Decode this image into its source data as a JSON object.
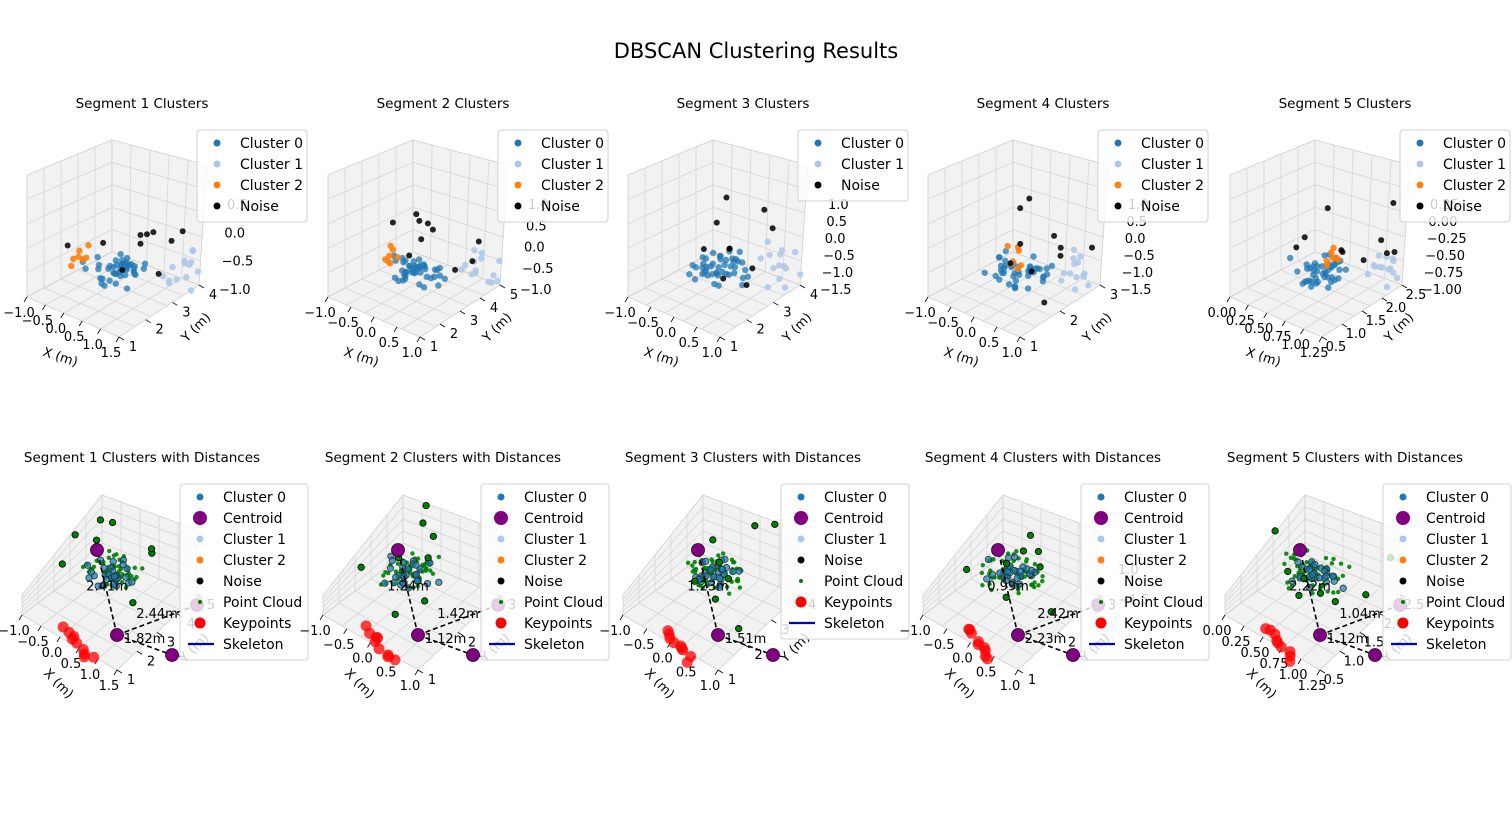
{
  "figure": {
    "suptitle": "DBSCAN Clustering Results"
  },
  "colors": {
    "cluster0": "#1f77b4",
    "cluster1": "#aec7e8",
    "cluster2": "#ff7f0e",
    "noise": "#000000",
    "centroid": "#800080",
    "pointcloud": "#008000",
    "keypoints": "#ff0000",
    "skeleton": "#0000cc",
    "distance_line": "#000000",
    "pane": "#f2f2f2",
    "grid": "#d6d6d6"
  },
  "chart_data": [
    {
      "type": "scatter3d",
      "title": "Segment 1 Clusters",
      "xlabel": "X (m)",
      "ylabel": "Y (m)",
      "zlabel": "",
      "xticks": [
        "−1.0",
        "−0.5",
        "0.0",
        "0.5",
        "1.0",
        "1.5"
      ],
      "yticks": [
        "1",
        "2",
        "3",
        "4"
      ],
      "zticks": [
        "0.5",
        "0.0",
        "−0.5",
        "−1.0"
      ],
      "legend": [
        "Cluster 0",
        "Cluster 1",
        "Cluster 2",
        "Noise"
      ],
      "legend_loc": "upper right"
    },
    {
      "type": "scatter3d",
      "title": "Segment 2 Clusters",
      "xlabel": "X (m)",
      "ylabel": "Y (m)",
      "zlabel": "",
      "xticks": [
        "−1.0",
        "−0.5",
        "0.0",
        "0.5",
        "1.0"
      ],
      "yticks": [
        "1",
        "2",
        "3",
        "4",
        "5"
      ],
      "zticks": [
        "1.0",
        "0.5",
        "0.0",
        "−0.5",
        "−1.0"
      ],
      "legend": [
        "Cluster 0",
        "Cluster 1",
        "Cluster 2",
        "Noise"
      ],
      "legend_loc": "upper right"
    },
    {
      "type": "scatter3d",
      "title": "Segment 3 Clusters",
      "xlabel": "X (m)",
      "ylabel": "Y (m)",
      "zlabel": "",
      "xticks": [
        "−1.0",
        "−0.5",
        "0.0",
        "0.5",
        "1.0"
      ],
      "yticks": [
        "1",
        "2",
        "3",
        "4"
      ],
      "zticks": [
        "1.0",
        "0.5",
        "0.0",
        "−0.5",
        "−1.0",
        "−1.5"
      ],
      "legend": [
        "Cluster 0",
        "Cluster 1",
        "Noise"
      ],
      "legend_loc": "upper right"
    },
    {
      "type": "scatter3d",
      "title": "Segment 4 Clusters",
      "xlabel": "X (m)",
      "ylabel": "Y (m)",
      "zlabel": "",
      "xticks": [
        "−1.0",
        "−0.5",
        "0.0",
        "0.5",
        "1.0"
      ],
      "yticks": [
        "1",
        "2",
        "3"
      ],
      "zticks": [
        "1.0",
        "0.5",
        "0.0",
        "−0.5",
        "−1.0",
        "−1.5"
      ],
      "legend": [
        "Cluster 0",
        "Cluster 1",
        "Cluster 2",
        "Noise"
      ],
      "legend_loc": "upper right"
    },
    {
      "type": "scatter3d",
      "title": "Segment 5 Clusters",
      "xlabel": "X (m)",
      "ylabel": "Y (m)",
      "zlabel": "",
      "xticks": [
        "0.00",
        "0.25",
        "0.50",
        "0.75",
        "1.00",
        "1.25"
      ],
      "yticks": [
        "0.5",
        "1.0",
        "1.5",
        "2.0",
        "2.5"
      ],
      "zticks": [
        "0.25",
        "0.00",
        "−0.25",
        "−0.50",
        "−0.75",
        "−1.00"
      ],
      "legend": [
        "Cluster 0",
        "Cluster 1",
        "Cluster 2",
        "Noise"
      ],
      "legend_loc": "upper right"
    },
    {
      "type": "scatter3d",
      "title": "Segment 1 Clusters with Distances",
      "xlabel": "X (m)",
      "ylabel": "Y (m)",
      "zlabel": "",
      "xticks": [
        "−1.0",
        "−0.5",
        "0.0",
        "0.5",
        "1.0",
        "1.5"
      ],
      "yticks": [
        "1",
        "2",
        "3",
        "4",
        "5"
      ],
      "zticks": [],
      "legend": [
        "Cluster 0",
        "Centroid",
        "Cluster 1",
        "Cluster 2",
        "Noise",
        "Point Cloud",
        "Keypoints",
        "Skeleton"
      ],
      "legend_loc": "upper right",
      "distance_labels": [
        "2.41m",
        "1.82m",
        "2.44m"
      ]
    },
    {
      "type": "scatter3d",
      "title": "Segment 2 Clusters with Distances",
      "xlabel": "X (m)",
      "ylabel": "Y (m)",
      "zlabel": "",
      "xticks": [
        "−1.0",
        "−0.5",
        "0.0",
        "0.5",
        "1.0"
      ],
      "yticks": [
        "1",
        "2",
        "3"
      ],
      "zticks": [],
      "legend": [
        "Cluster 0",
        "Centroid",
        "Cluster 1",
        "Cluster 2",
        "Noise",
        "Point Cloud",
        "Keypoints",
        "Skeleton"
      ],
      "legend_loc": "upper right",
      "distance_labels": [
        "1.24m",
        "1.12m",
        "1.42m"
      ]
    },
    {
      "type": "scatter3d",
      "title": "Segment 3 Clusters with Distances",
      "xlabel": "X (m)",
      "ylabel": "Y (m)",
      "zlabel": "",
      "xticks": [
        "−1.0",
        "−0.5",
        "0.0",
        "0.5",
        "1.0"
      ],
      "yticks": [
        "1",
        "2",
        "3",
        "4"
      ],
      "zticks": [],
      "legend": [
        "Cluster 0",
        "Centroid",
        "Cluster 1",
        "Noise",
        "Point Cloud",
        "Keypoints",
        "Skeleton"
      ],
      "legend_loc": "upper right",
      "distance_labels": [
        "1.23m",
        "1.51m"
      ]
    },
    {
      "type": "scatter3d",
      "title": "Segment 4 Clusters with Distances",
      "xlabel": "X (m)",
      "ylabel": "Y (m)",
      "zlabel": "",
      "xticks": [
        "−1.0",
        "−0.5",
        "0.0",
        "0.5",
        "1.0"
      ],
      "yticks": [
        "1",
        "2",
        "3"
      ],
      "zticks": [
        "1.0",
        "−1.5"
      ],
      "legend": [
        "Cluster 0",
        "Centroid",
        "Cluster 1",
        "Cluster 2",
        "Noise",
        "Point Cloud",
        "Keypoints",
        "Skeleton"
      ],
      "legend_loc": "upper right",
      "distance_labels": [
        "0.99m",
        "2.23m",
        "2.42m"
      ]
    },
    {
      "type": "scatter3d",
      "title": "Segment 5 Clusters with Distances",
      "xlabel": "X (m)",
      "ylabel": "Y (m)",
      "zlabel": "",
      "xticks": [
        "0.00",
        "0.25",
        "0.50",
        "0.75",
        "1.00",
        "1.25"
      ],
      "yticks": [
        "0.5",
        "1.0",
        "1.5",
        "2.0",
        "2.5"
      ],
      "zticks": [],
      "legend": [
        "Cluster 0",
        "Centroid",
        "Cluster 1",
        "Cluster 2",
        "Noise",
        "Point Cloud",
        "Keypoints",
        "Skeleton"
      ],
      "legend_loc": "upper right",
      "distance_labels": [
        "2.22m",
        "1.12m",
        "1.04m"
      ]
    }
  ]
}
